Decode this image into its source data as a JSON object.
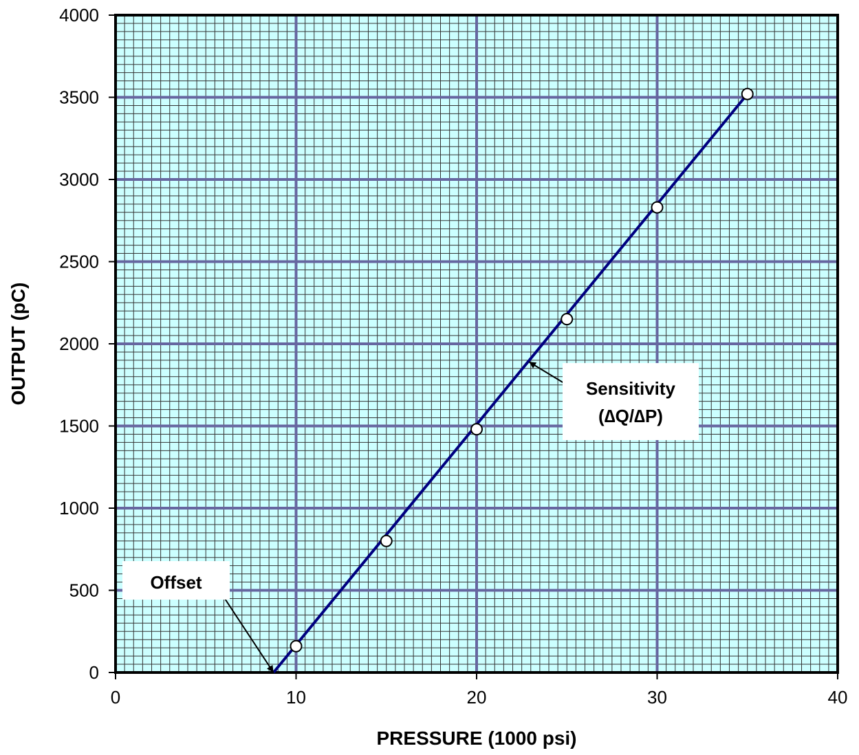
{
  "chart_data": {
    "type": "scatter",
    "title": "",
    "xlabel": "PRESSURE (1000 psi)",
    "ylabel": "OUTPUT (pC)",
    "xlim": [
      0,
      40
    ],
    "ylim": [
      0,
      4000
    ],
    "x_ticks": [
      "0",
      "10",
      "20",
      "30",
      "40"
    ],
    "y_ticks": [
      "0",
      "500",
      "1000",
      "1500",
      "2000",
      "2500",
      "3000",
      "3500",
      "4000"
    ],
    "grid": true,
    "series": [
      {
        "x": [
          10,
          15,
          20,
          25,
          30,
          35
        ],
        "y": [
          160,
          800,
          1480,
          2150,
          2830,
          3520
        ]
      }
    ],
    "fit_line": {
      "x": [
        8.75,
        35
      ],
      "y": [
        0,
        3520
      ]
    },
    "annotations": [
      {
        "id": "sensitivity",
        "lines": [
          "Sensitivity",
          "(∆Q/∆P)"
        ],
        "points_to": [
          22.9,
          1890
        ]
      },
      {
        "id": "offset",
        "lines": [
          "Offset"
        ],
        "points_to": [
          8.75,
          0
        ]
      }
    ],
    "colors": {
      "plot_background": "#ccffff",
      "minor_grid": "#333333",
      "major_grid": "#6666a0",
      "fit_line": "#000080",
      "marker_fill": "#ffffff",
      "marker_stroke": "#000000"
    }
  }
}
